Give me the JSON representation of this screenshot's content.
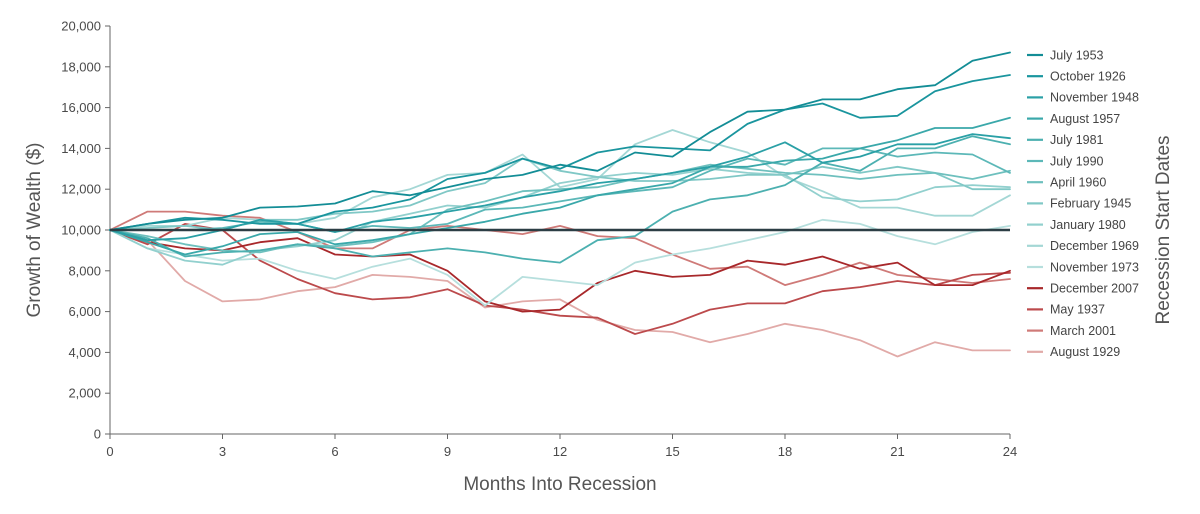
{
  "chart_data": {
    "type": "line",
    "title": "",
    "xlabel": "Months Into Recession",
    "ylabel": "Growth of Wealth ($)",
    "legend_title": "Recession Start Dates",
    "legend_position": "right",
    "grid": false,
    "xlim": [
      0,
      24
    ],
    "ylim": [
      0,
      20000
    ],
    "x_ticks": [
      0,
      3,
      6,
      9,
      12,
      15,
      18,
      21,
      24
    ],
    "y_ticks": [
      0,
      2000,
      4000,
      6000,
      8000,
      10000,
      12000,
      14000,
      16000,
      18000,
      20000
    ],
    "y_tick_labels": [
      "0",
      "2,000",
      "4,000",
      "6,000",
      "8,000",
      "10,000",
      "12,000",
      "14,000",
      "16,000",
      "18,000",
      "20,000"
    ],
    "reference_line": {
      "y": 10000,
      "color": "#2c3e45"
    },
    "x": [
      0,
      1,
      2,
      3,
      4,
      5,
      6,
      7,
      8,
      9,
      10,
      11,
      12,
      13,
      14,
      15,
      16,
      17,
      18,
      19,
      20,
      21,
      22,
      23,
      24
    ],
    "series": [
      {
        "name": "July 1953",
        "color": "#138d96",
        "values": [
          10000,
          10300,
          10500,
          10600,
          11100,
          11150,
          11300,
          11900,
          11700,
          12100,
          12500,
          12700,
          13200,
          12900,
          13800,
          13600,
          14800,
          15800,
          15900,
          16400,
          16400,
          16900,
          17100,
          18300,
          18700
        ]
      },
      {
        "name": "October 1926",
        "color": "#1a959e",
        "values": [
          10000,
          10300,
          10600,
          10500,
          10300,
          10300,
          10900,
          11100,
          11500,
          12500,
          12800,
          13500,
          13000,
          13800,
          14100,
          14000,
          13900,
          15200,
          15900,
          16200,
          15500,
          15600,
          16800,
          17300,
          17600
        ]
      },
      {
        "name": "November 1948",
        "color": "#2aa0a6",
        "values": [
          10000,
          9500,
          9600,
          10000,
          10500,
          10300,
          9900,
          10400,
          10600,
          10900,
          11200,
          11600,
          11900,
          12300,
          12500,
          12800,
          13100,
          13600,
          14300,
          13300,
          13600,
          14200,
          14200,
          14700,
          14500
        ]
      },
      {
        "name": "August 1957",
        "color": "#3aa8aa",
        "values": [
          10000,
          9400,
          8800,
          9200,
          9800,
          9900,
          9300,
          9500,
          9800,
          10100,
          10400,
          10800,
          11100,
          11700,
          12000,
          12300,
          13100,
          13100,
          13400,
          13500,
          14000,
          14400,
          15000,
          15000,
          15500
        ]
      },
      {
        "name": "July 1981",
        "color": "#4cb0b0",
        "values": [
          10000,
          9600,
          8700,
          8900,
          9000,
          9300,
          9100,
          8700,
          8900,
          9100,
          8900,
          8600,
          8400,
          9500,
          9700,
          10900,
          11500,
          11700,
          12200,
          13300,
          12900,
          14000,
          14000,
          14600,
          14200
        ]
      },
      {
        "name": "July 1990",
        "color": "#5cb8b8",
        "values": [
          10000,
          10000,
          10000,
          10100,
          10400,
          10300,
          9900,
          10200,
          10100,
          10300,
          11000,
          11100,
          11400,
          11700,
          11900,
          12100,
          12900,
          13500,
          13200,
          14000,
          14000,
          13600,
          13800,
          13700,
          12800
        ]
      },
      {
        "name": "April 1960",
        "color": "#6ec0be",
        "values": [
          10000,
          9700,
          9300,
          9000,
          8900,
          9300,
          9200,
          9400,
          9800,
          11000,
          11400,
          11900,
          12000,
          12100,
          12500,
          12800,
          13200,
          13000,
          12800,
          12700,
          12500,
          12700,
          12800,
          12500,
          12900
        ]
      },
      {
        "name": "February 1945",
        "color": "#80c8c6",
        "values": [
          10000,
          10100,
          10200,
          10000,
          10500,
          10500,
          10800,
          10900,
          11200,
          11900,
          12300,
          13500,
          12900,
          12600,
          12400,
          12400,
          12500,
          12700,
          12700,
          13100,
          12800,
          13100,
          12800,
          12000,
          12000
        ]
      },
      {
        "name": "January 1980",
        "color": "#92d0ce",
        "values": [
          10000,
          9100,
          8500,
          8300,
          9000,
          9200,
          9500,
          10400,
          10800,
          11200,
          11100,
          11600,
          12300,
          12600,
          12800,
          12700,
          13000,
          12800,
          12700,
          11600,
          11400,
          11500,
          12100,
          12200,
          12100
        ]
      },
      {
        "name": "December 1969",
        "color": "#a4d7d5",
        "values": [
          10000,
          10200,
          10200,
          10600,
          10500,
          10300,
          10600,
          11600,
          12000,
          12700,
          12800,
          13700,
          12100,
          12500,
          14200,
          14900,
          14300,
          13800,
          12600,
          11900,
          11100,
          11100,
          10700,
          10700,
          11700
        ]
      },
      {
        "name": "November 1973",
        "color": "#b6dfdd",
        "values": [
          10000,
          9100,
          8800,
          8500,
          8600,
          8000,
          7600,
          8200,
          8600,
          7800,
          6300,
          7700,
          7500,
          7300,
          8400,
          8800,
          9100,
          9500,
          9900,
          10500,
          10300,
          9700,
          9300,
          9900,
          10200
        ]
      },
      {
        "name": "December 2007",
        "color": "#a8282b",
        "values": [
          10000,
          9400,
          9100,
          9000,
          9400,
          9600,
          8800,
          8700,
          8800,
          8000,
          6500,
          6000,
          6100,
          7400,
          8000,
          7700,
          7800,
          8500,
          8300,
          8700,
          8100,
          8400,
          7300,
          7300,
          8000
        ]
      },
      {
        "name": "May 1937",
        "color": "#bc4a4c",
        "values": [
          10000,
          9300,
          10300,
          10000,
          8500,
          7600,
          6900,
          6600,
          6700,
          7100,
          6300,
          6100,
          5800,
          5700,
          4900,
          5400,
          6100,
          6400,
          6400,
          7000,
          7200,
          7500,
          7300,
          7800,
          7900
        ]
      },
      {
        "name": "March 2001",
        "color": "#cf7a78",
        "values": [
          10000,
          10900,
          10900,
          10700,
          10600,
          9900,
          9100,
          9100,
          10000,
          10200,
          10000,
          9800,
          10200,
          9700,
          9600,
          8800,
          8100,
          8200,
          7300,
          7800,
          8400,
          7800,
          7600,
          7400,
          7600
        ]
      },
      {
        "name": "August 1929",
        "color": "#e1aaa8",
        "values": [
          10000,
          9500,
          7500,
          6500,
          6600,
          7000,
          7200,
          7800,
          7700,
          7500,
          6200,
          6500,
          6600,
          5600,
          5100,
          5000,
          4500,
          4900,
          5400,
          5100,
          4600,
          3800,
          4500,
          4100,
          4100
        ]
      }
    ]
  }
}
